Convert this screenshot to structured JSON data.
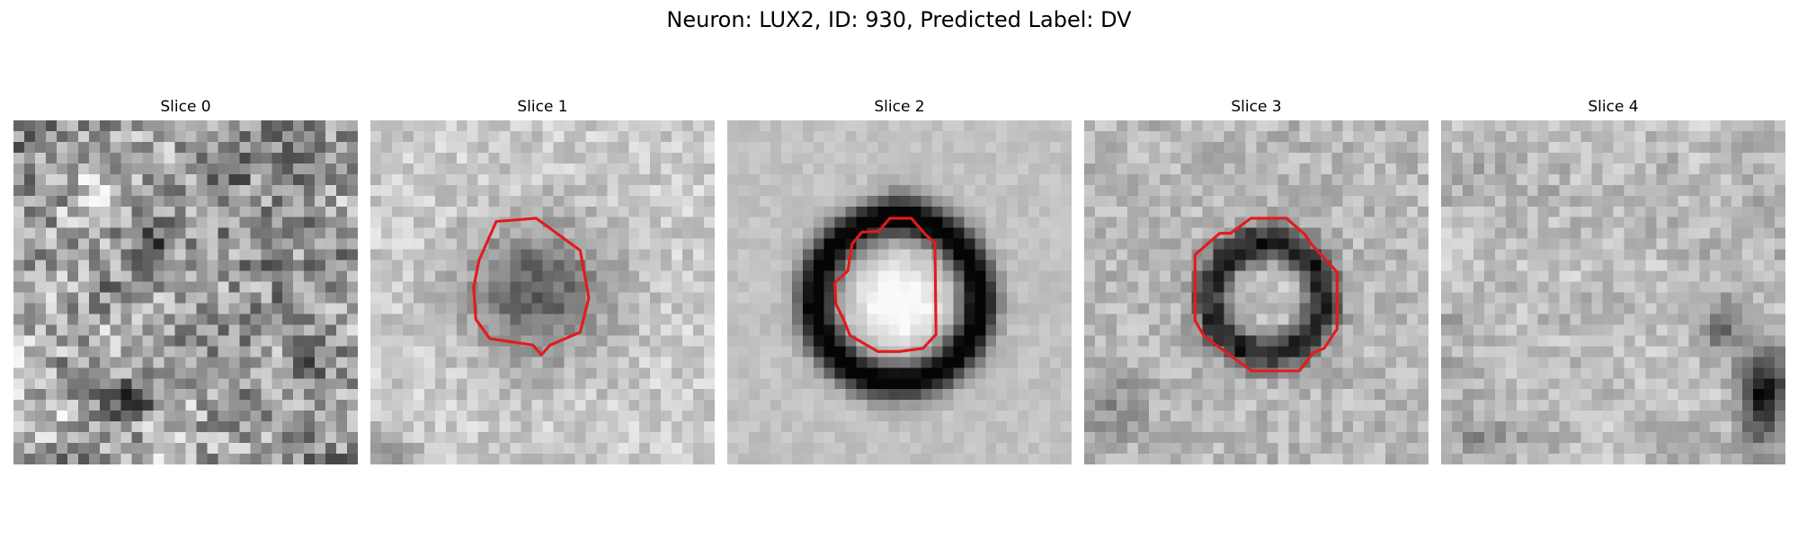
{
  "figure": {
    "title": "Neuron: LUX2, ID: 930, Predicted Label: DV"
  },
  "panels": [
    {
      "title": "Slice 0",
      "has_contour": false
    },
    {
      "title": "Slice 1",
      "has_contour": true
    },
    {
      "title": "Slice 2",
      "has_contour": true
    },
    {
      "title": "Slice 3",
      "has_contour": true
    },
    {
      "title": "Slice 4",
      "has_contour": false
    }
  ],
  "colors": {
    "contour": "#e41a1c",
    "background": "#ffffff"
  },
  "colormap": "grayscale"
}
